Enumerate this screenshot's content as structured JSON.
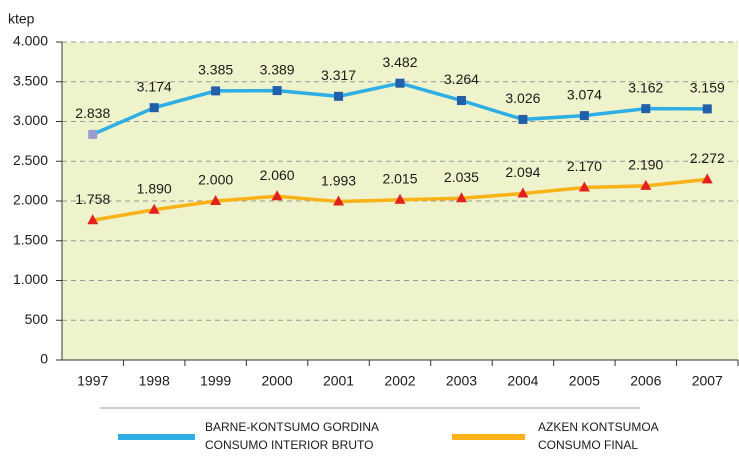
{
  "chart_data": {
    "type": "line",
    "y_label": "ktep",
    "categories": [
      "1997",
      "1998",
      "1999",
      "2000",
      "2001",
      "2002",
      "2003",
      "2004",
      "2005",
      "2006",
      "2007"
    ],
    "series": [
      {
        "name": [
          "BARNE-KONTSUMO GORDINA",
          "CONSUMO INTERIOR BRUTO"
        ],
        "color": "#2eaee4",
        "marker_color": "#2160a8",
        "first_marker_color": "#9a9bd0",
        "marker": "square",
        "values": [
          2838,
          3174,
          3385,
          3389,
          3317,
          3482,
          3264,
          3026,
          3074,
          3162,
          3159
        ],
        "value_labels": [
          "2.838",
          "3.174",
          "3.385",
          "3.389",
          "3.317",
          "3.482",
          "3.264",
          "3.026",
          "3.074",
          "3.162",
          "3.159"
        ]
      },
      {
        "name": [
          "AZKEN KONTSUMOA",
          "CONSUMO FINAL"
        ],
        "color": "#fbb118",
        "marker_color": "#e3201b",
        "marker": "triangle",
        "values": [
          1758,
          1890,
          2000,
          2060,
          1993,
          2015,
          2035,
          2094,
          2170,
          2190,
          2272
        ],
        "value_labels": [
          "1.758",
          "1.890",
          "2.000",
          "2.060",
          "1.993",
          "2.015",
          "2.035",
          "2.094",
          "2.170",
          "2.190",
          "2.272"
        ]
      }
    ],
    "ylim": [
      0,
      4000
    ],
    "yticks": [
      0,
      500,
      {
        "value": 1000,
        "label": "1.000"
      },
      {
        "value": 1500,
        "label": "1.500"
      },
      {
        "value": 2000,
        "label": "2.000"
      },
      {
        "value": 2500,
        "label": "2.500"
      },
      {
        "value": 3000,
        "label": "3.000"
      },
      {
        "value": 3500,
        "label": "3.500"
      },
      {
        "value": 4000,
        "label": "4.000"
      }
    ],
    "grid": true,
    "background": "#eff3cb"
  }
}
